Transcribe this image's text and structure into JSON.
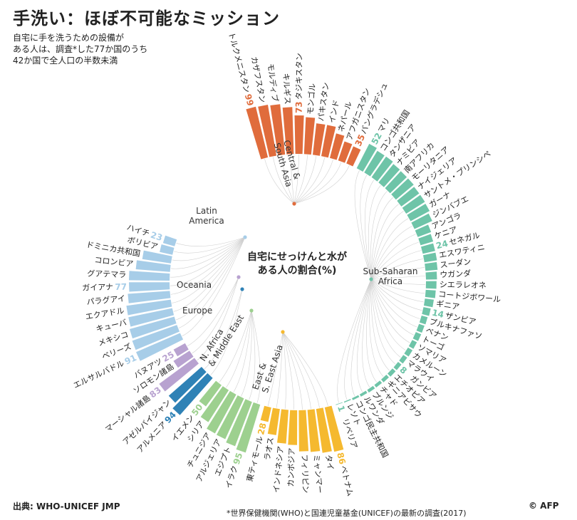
{
  "title": "手洗い：ほぼ不可能なミッション",
  "subtitle": "自宅に手を洗うための設備が\nある人は、調査*した77か国のうち\n42か国で全人口の半数未満",
  "center_label": "自宅にせっけんと水が\nある人の割合(%)",
  "source": "出典: WHO-UNICEF JMP",
  "footnote": "*世界保健機関(WHO)と国連児童基金(UNICEF)の最新の調査(2017)",
  "credit": "© AFP",
  "colors": {
    "Central & South Asia": "#e06c3c",
    "Sub-Saharan Africa": "#6ec4a8",
    "East & S. East Asia": "#f5b92f",
    "N. Africa & Middle East": "#9dd08f",
    "Europe": "#2f82b6",
    "Oceania": "#b8a2d0",
    "Latin America": "#a7cde8"
  },
  "chart_data": {
    "type": "bar",
    "layout": "radial",
    "values_shown": "only labeled bars carry printed values; others are estimated from bar length",
    "groups": [
      {
        "name": "Central & South Asia",
        "label": "Central &\nSouth Asia",
        "countries": [
          {
            "name": "トルクメニスタン",
            "value": 99,
            "labeled": true
          },
          {
            "name": "カザフスタン",
            "value": 98
          },
          {
            "name": "モルディブ",
            "value": 96
          },
          {
            "name": "キルギス",
            "value": 89
          },
          {
            "name": "タジキスタン",
            "value": 73,
            "labeled": true
          },
          {
            "name": "モンゴル",
            "value": 70
          },
          {
            "name": "パキスタン",
            "value": 60
          },
          {
            "name": "インド",
            "value": 60
          },
          {
            "name": "ネパール",
            "value": 48
          },
          {
            "name": "アフガニスタン",
            "value": 38
          },
          {
            "name": "バングラデシュ",
            "value": 35,
            "labeled": true
          }
        ]
      },
      {
        "name": "Sub-Saharan Africa",
        "label": "Sub-Saharan\nAfrica",
        "countries": [
          {
            "name": "マリ",
            "value": 52,
            "labeled": true
          },
          {
            "name": "コンゴ共和国",
            "value": 48
          },
          {
            "name": "タンザニア",
            "value": 48
          },
          {
            "name": "ナミビア",
            "value": 45
          },
          {
            "name": "南アフリカ",
            "value": 44
          },
          {
            "name": "モーリタニア",
            "value": 44
          },
          {
            "name": "ナイジェリア",
            "value": 42
          },
          {
            "name": "サントメ・プリンシペ",
            "value": 42
          },
          {
            "name": "ガーナ",
            "value": 41
          },
          {
            "name": "ジンバブエ",
            "value": 37
          },
          {
            "name": "アンゴラ",
            "value": 27
          },
          {
            "name": "ケニア",
            "value": 25
          },
          {
            "name": "セネガル",
            "value": 24,
            "labeled": true
          },
          {
            "name": "エスワティニ",
            "value": 24
          },
          {
            "name": "スーダン",
            "value": 23
          },
          {
            "name": "ウガンダ",
            "value": 21
          },
          {
            "name": "シエラレオネ",
            "value": 20
          },
          {
            "name": "コートジボワール",
            "value": 19
          },
          {
            "name": "ギニア",
            "value": 17
          },
          {
            "name": "ザンビア",
            "value": 14,
            "labeled": true
          },
          {
            "name": "ブルキナファソ",
            "value": 12
          },
          {
            "name": "ベナン",
            "value": 11
          },
          {
            "name": "トーゴ",
            "value": 11
          },
          {
            "name": "ソマリア",
            "value": 10
          },
          {
            "name": "カメルーン",
            "value": 10
          },
          {
            "name": "マラウイ",
            "value": 9
          },
          {
            "name": "ガンビア",
            "value": 8,
            "labeled": true
          },
          {
            "name": "エチオピア",
            "value": 8
          },
          {
            "name": "ギニアビサウ",
            "value": 7
          },
          {
            "name": "チャド",
            "value": 6
          },
          {
            "name": "ブルンジ",
            "value": 6
          },
          {
            "name": "ルワンダ",
            "value": 5
          },
          {
            "name": "コンゴ民主共和国",
            "value": 4
          },
          {
            "name": "レソト",
            "value": 2
          },
          {
            "name": "リベリア",
            "value": 1,
            "labeled": true
          }
        ]
      },
      {
        "name": "East & S. East Asia",
        "label": "East &\nS. East Asia",
        "countries": [
          {
            "name": "ベトナム",
            "value": 86,
            "labeled": true
          },
          {
            "name": "タイ",
            "value": 84
          },
          {
            "name": "ミャンマー",
            "value": 80
          },
          {
            "name": "フィリピン",
            "value": 78
          },
          {
            "name": "カンボジア",
            "value": 66
          },
          {
            "name": "インドネシア",
            "value": 64
          },
          {
            "name": "ラオス",
            "value": 50
          },
          {
            "name": "東ティモール",
            "value": 28,
            "labeled": true
          }
        ]
      },
      {
        "name": "N. Africa & Middle East",
        "label": "N. Africa\n& Middle East",
        "countries": [
          {
            "name": "イラク",
            "value": 95,
            "labeled": true
          },
          {
            "name": "エジプト",
            "value": 90
          },
          {
            "name": "アルジェリア",
            "value": 85
          },
          {
            "name": "チュニジア",
            "value": 84
          },
          {
            "name": "シリア",
            "value": 72
          },
          {
            "name": "イエメン",
            "value": 50,
            "labeled": true
          }
        ]
      },
      {
        "name": "Europe",
        "label": "Europe",
        "countries": [
          {
            "name": "アルメニア",
            "value": 94,
            "labeled": true
          },
          {
            "name": "アゼルバイジャン",
            "value": 83
          }
        ]
      },
      {
        "name": "Oceania",
        "label": "Oceania",
        "countries": [
          {
            "name": "マーシャル諸島",
            "value": 83,
            "labeled": true
          },
          {
            "name": "ソロモン諸島",
            "value": 36
          },
          {
            "name": "バヌアツ",
            "value": 25,
            "labeled": true
          }
        ]
      },
      {
        "name": "Latin America",
        "label": "Latin\nAmerica",
        "countries": [
          {
            "name": "エルサルバドル",
            "value": 91,
            "labeled": true
          },
          {
            "name": "ベリーズ",
            "value": 90
          },
          {
            "name": "メキシコ",
            "value": 88
          },
          {
            "name": "キューバ",
            "value": 85
          },
          {
            "name": "エクアドル",
            "value": 85
          },
          {
            "name": "パラグアイ",
            "value": 80
          },
          {
            "name": "ガイアナ",
            "value": 77,
            "labeled": true
          },
          {
            "name": "グアテマラ",
            "value": 77
          },
          {
            "name": "コロンビア",
            "value": 65
          },
          {
            "name": "ドミニカ共和国",
            "value": 55
          },
          {
            "name": "ボリビア",
            "value": 25
          },
          {
            "name": "ハイチ",
            "value": 23,
            "labeled": true
          }
        ]
      }
    ]
  }
}
